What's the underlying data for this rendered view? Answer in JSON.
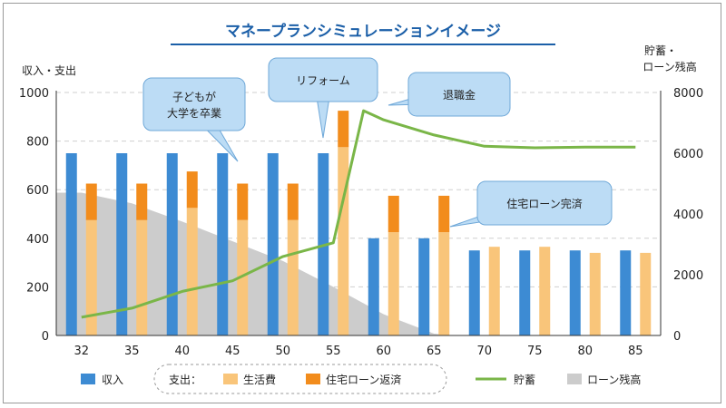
{
  "chart_data": {
    "type": "bar",
    "title": "マネープランシミュレーションイメージ",
    "y_left_label": "収入・支出",
    "y_right_label_lines": [
      "貯蓄・",
      "ローン残高"
    ],
    "categories": [
      "32",
      "35",
      "40",
      "45",
      "50",
      "55",
      "60",
      "65",
      "70",
      "75",
      "80",
      "85"
    ],
    "y_left_ticks": [
      "0",
      "200",
      "400",
      "600",
      "800",
      "1000"
    ],
    "y_right_ticks": [
      "0",
      "2000",
      "4000",
      "6000",
      "8000"
    ],
    "ylim_left": [
      0,
      1000
    ],
    "ylim_right": [
      0,
      8000
    ],
    "grid": true,
    "series": [
      {
        "name": "収入",
        "type": "bar",
        "axis": "left",
        "color": "#3d8bd3",
        "values": [
          750,
          750,
          750,
          750,
          750,
          750,
          400,
          400,
          350,
          350,
          350,
          350
        ]
      },
      {
        "name": "生活費",
        "type": "stacked-bar",
        "axis": "left",
        "color": "#f9c57a",
        "values": [
          475,
          475,
          525,
          475,
          475,
          775,
          425,
          425,
          365,
          365,
          340,
          340
        ]
      },
      {
        "name": "住宅ローン返済",
        "type": "stacked-bar",
        "axis": "left",
        "color": "#f28c1c",
        "values": [
          150,
          150,
          150,
          150,
          150,
          150,
          150,
          150,
          0,
          0,
          0,
          0
        ]
      },
      {
        "name": "貯蓄",
        "type": "line",
        "axis": "right",
        "color": "#7ab648",
        "x": [
          32,
          35,
          40,
          45,
          50,
          55,
          58,
          60,
          65,
          70,
          75,
          80,
          85
        ],
        "values": [
          600,
          900,
          1450,
          1800,
          2600,
          3050,
          7400,
          7100,
          6600,
          6230,
          6180,
          6200,
          6200
        ]
      },
      {
        "name": "ローン残高",
        "type": "area",
        "axis": "right",
        "color": "#cccccc",
        "x": [
          32,
          35,
          40,
          45,
          50,
          55,
          60,
          65,
          67
        ],
        "values": [
          4700,
          4350,
          3750,
          3100,
          2450,
          1600,
          700,
          60,
          0
        ]
      }
    ],
    "legend": {
      "position": "bottom",
      "expense_group_label": "支出："
    },
    "annotations": [
      {
        "text_lines": [
          "子どもが",
          "大学を卒業"
        ],
        "pointer_category": "45"
      },
      {
        "text_lines": [
          "リフォーム"
        ],
        "pointer_category": "55"
      },
      {
        "text_lines": [
          "退職金"
        ],
        "pointer_category": "58"
      },
      {
        "text_lines": [
          "住宅ローン完済"
        ],
        "pointer_category": "65"
      }
    ]
  }
}
